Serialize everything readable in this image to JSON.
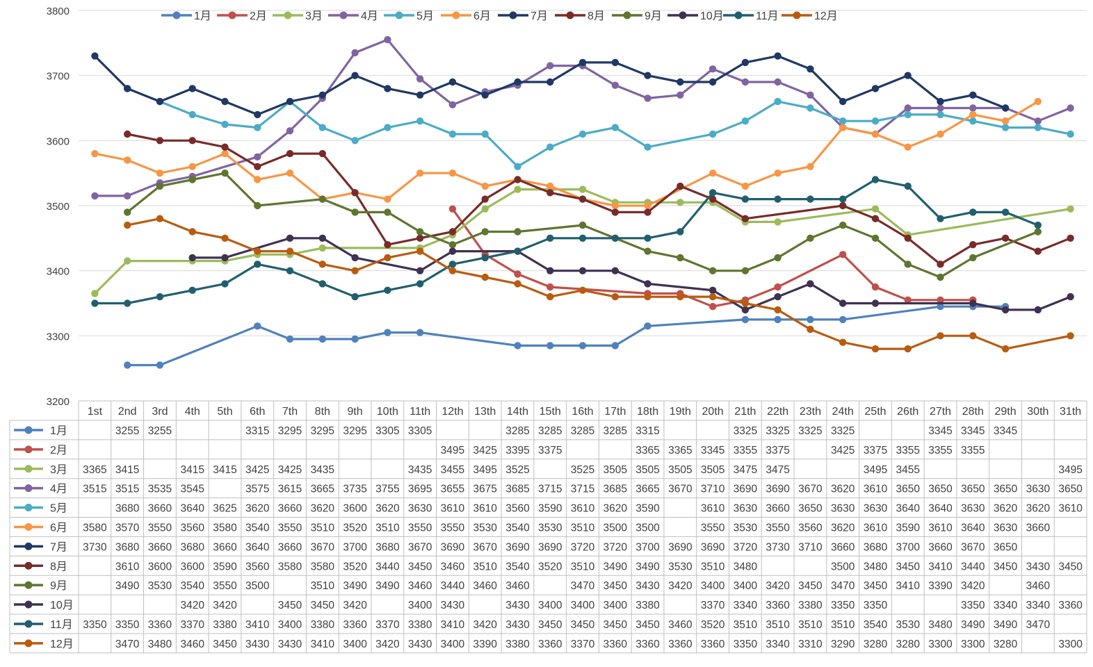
{
  "chart_data": {
    "type": "line",
    "title": "",
    "xlabel": "",
    "ylabel": "",
    "ylim": [
      3200,
      3800
    ],
    "yticks": [
      "3200",
      "3300",
      "3400",
      "3500",
      "3600",
      "3700",
      "3800"
    ],
    "grid": true,
    "legend_position": "top",
    "categories": [
      "1st",
      "2nd",
      "3rd",
      "4th",
      "5th",
      "6th",
      "7th",
      "8th",
      "9th",
      "10th",
      "11th",
      "12th",
      "13th",
      "14th",
      "15th",
      "16th",
      "17th",
      "18th",
      "19th",
      "20th",
      "21th",
      "22th",
      "23th",
      "24th",
      "25th",
      "26th",
      "27th",
      "28th",
      "29th",
      "30th",
      "31th"
    ],
    "series": [
      {
        "name": "1月",
        "color": "#4f81bd",
        "values": [
          null,
          3255,
          3255,
          null,
          null,
          3315,
          3295,
          3295,
          3295,
          3305,
          3305,
          null,
          null,
          3285,
          3285,
          3285,
          3285,
          3315,
          null,
          null,
          3325,
          3325,
          3325,
          3325,
          null,
          null,
          3345,
          3345,
          3345,
          null,
          null
        ]
      },
      {
        "name": "2月",
        "color": "#c0504d",
        "values": [
          null,
          null,
          null,
          null,
          null,
          null,
          null,
          null,
          null,
          null,
          null,
          3495,
          3425,
          3395,
          3375,
          null,
          null,
          3365,
          3365,
          3345,
          3355,
          3375,
          null,
          3425,
          3375,
          3355,
          3355,
          3355,
          null,
          null,
          null
        ]
      },
      {
        "name": "3月",
        "color": "#9bbb59",
        "values": [
          3365,
          3415,
          null,
          3415,
          3415,
          3425,
          3425,
          3435,
          null,
          null,
          3435,
          3455,
          3495,
          3525,
          null,
          3525,
          3505,
          3505,
          3505,
          3505,
          3475,
          3475,
          null,
          null,
          3495,
          3455,
          null,
          null,
          null,
          null,
          3495
        ]
      },
      {
        "name": "4月",
        "color": "#8064a2",
        "values": [
          3515,
          3515,
          3535,
          3545,
          null,
          3575,
          3615,
          3665,
          3735,
          3755,
          3695,
          3655,
          3675,
          3685,
          3715,
          3715,
          3685,
          3665,
          3670,
          3710,
          3690,
          3690,
          3670,
          3620,
          3610,
          3650,
          3650,
          3650,
          3650,
          3630,
          3650
        ]
      },
      {
        "name": "5月",
        "color": "#4bacc6",
        "values": [
          null,
          3680,
          3660,
          3640,
          3625,
          3620,
          3660,
          3620,
          3600,
          3620,
          3630,
          3610,
          3610,
          3560,
          3590,
          3610,
          3620,
          3590,
          null,
          3610,
          3630,
          3660,
          3650,
          3630,
          3630,
          3640,
          3640,
          3630,
          3620,
          3620,
          3610
        ]
      },
      {
        "name": "6月",
        "color": "#f79646",
        "values": [
          3580,
          3570,
          3550,
          3560,
          3580,
          3540,
          3550,
          3510,
          3520,
          3510,
          3550,
          3550,
          3530,
          3540,
          3530,
          3510,
          3500,
          3500,
          null,
          3550,
          3530,
          3550,
          3560,
          3620,
          3610,
          3590,
          3610,
          3640,
          3630,
          3660,
          null
        ]
      },
      {
        "name": "7月",
        "color": "#1f3864",
        "values": [
          3730,
          3680,
          3660,
          3680,
          3660,
          3640,
          3660,
          3670,
          3700,
          3680,
          3670,
          3690,
          3670,
          3690,
          3690,
          3720,
          3720,
          3700,
          3690,
          3690,
          3720,
          3730,
          3710,
          3660,
          3680,
          3700,
          3660,
          3670,
          3650,
          null,
          null
        ]
      },
      {
        "name": "8月",
        "color": "#772c2a",
        "values": [
          null,
          3610,
          3600,
          3600,
          3590,
          3560,
          3580,
          3580,
          3520,
          3440,
          3450,
          3460,
          3510,
          3540,
          3520,
          3510,
          3490,
          3490,
          3530,
          3510,
          3480,
          null,
          null,
          3500,
          3480,
          3450,
          3410,
          3440,
          3450,
          3430,
          3450
        ]
      },
      {
        "name": "9月",
        "color": "#5f7530",
        "values": [
          null,
          3490,
          3530,
          3540,
          3550,
          3500,
          null,
          3510,
          3490,
          3490,
          3460,
          3440,
          3460,
          3460,
          null,
          3470,
          3450,
          3430,
          3420,
          3400,
          3400,
          3420,
          3450,
          3470,
          3450,
          3410,
          3390,
          3420,
          null,
          3460,
          null
        ]
      },
      {
        "name": "10月",
        "color": "#403152",
        "values": [
          null,
          null,
          null,
          3420,
          3420,
          null,
          3450,
          3450,
          3420,
          null,
          3400,
          3430,
          null,
          3430,
          3400,
          3400,
          3400,
          3380,
          null,
          3370,
          3340,
          3360,
          3380,
          3350,
          3350,
          null,
          null,
          3350,
          3340,
          3340,
          3360
        ]
      },
      {
        "name": "11月",
        "color": "#215f6e",
        "values": [
          3350,
          3350,
          3360,
          3370,
          3380,
          3410,
          3400,
          3380,
          3360,
          3370,
          3380,
          3410,
          3420,
          3430,
          3450,
          3450,
          3450,
          3450,
          3460,
          3520,
          3510,
          3510,
          3510,
          3510,
          3540,
          3530,
          3480,
          3490,
          3490,
          3470,
          null
        ]
      },
      {
        "name": "12月",
        "color": "#b95c10",
        "values": [
          null,
          3470,
          3480,
          3460,
          3450,
          3430,
          3430,
          3410,
          3400,
          3420,
          3430,
          3400,
          3390,
          3380,
          3360,
          3370,
          3360,
          3360,
          3360,
          3360,
          3350,
          3340,
          3310,
          3290,
          3280,
          3280,
          3300,
          3300,
          3280,
          null,
          3300
        ]
      }
    ]
  }
}
